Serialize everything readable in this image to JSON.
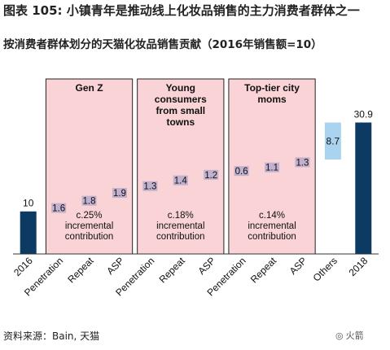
{
  "header": {
    "title": "图表 105: 小镇青年是推动线上化妆品销售的主力消费者群体之一",
    "subtitle": "按消费者群体划分的天猫化妆品销售贡献（2016年销售额=10）"
  },
  "footer": {
    "source": "资料来源：Bain, 天猫",
    "watermark": "火箭"
  },
  "colors": {
    "total_bar": "#0d3a63",
    "others_bar": "#a9d3ee",
    "segment_box_fill": "#f9d3d5",
    "segment_box_border": "#222222",
    "marker": "#a9a2cc"
  },
  "chart_data": {
    "type": "bar",
    "subtype": "waterfall",
    "ylim": [
      0,
      31
    ],
    "categories": [
      "2016",
      "Penetration",
      "Repeat",
      "ASP",
      "Penetration",
      "Repeat",
      "ASP",
      "Penetration",
      "Repeat",
      "ASP",
      "Others",
      "2018"
    ],
    "bars": [
      {
        "category": "2016",
        "kind": "total",
        "value": 10,
        "label": "10"
      },
      {
        "category": "Penetration",
        "group": 0,
        "kind": "increment",
        "value": 1.6,
        "label": "1.6"
      },
      {
        "category": "Repeat",
        "group": 0,
        "kind": "increment",
        "value": 1.8,
        "label": "1.8"
      },
      {
        "category": "ASP",
        "group": 0,
        "kind": "increment",
        "value": 1.9,
        "label": "1.9"
      },
      {
        "category": "Penetration",
        "group": 1,
        "kind": "increment",
        "value": 1.3,
        "label": "1.3"
      },
      {
        "category": "Repeat",
        "group": 1,
        "kind": "increment",
        "value": 1.4,
        "label": "1.4"
      },
      {
        "category": "ASP",
        "group": 1,
        "kind": "increment",
        "value": 1.2,
        "label": "1.2"
      },
      {
        "category": "Penetration",
        "group": 2,
        "kind": "increment",
        "value": 0.6,
        "label": "0.6"
      },
      {
        "category": "Repeat",
        "group": 2,
        "kind": "increment",
        "value": 1.1,
        "label": "1.1"
      },
      {
        "category": "ASP",
        "group": 2,
        "kind": "increment",
        "value": 1.3,
        "label": "1.3"
      },
      {
        "category": "Others",
        "kind": "increment",
        "value": 8.7,
        "label": "8.7"
      },
      {
        "category": "2018",
        "kind": "total",
        "value": 30.9,
        "label": "30.9"
      }
    ],
    "groups": [
      {
        "name": "Gen Z",
        "contribution": "c.25%\nincremental\ncontribution"
      },
      {
        "name": "Young\nconsumers\nfrom small\ntowns",
        "contribution": "c.18%\nincremental\ncontribution"
      },
      {
        "name": "Top-tier city\nmoms",
        "contribution": "c.14%\nincremental\ncontribution"
      }
    ]
  }
}
